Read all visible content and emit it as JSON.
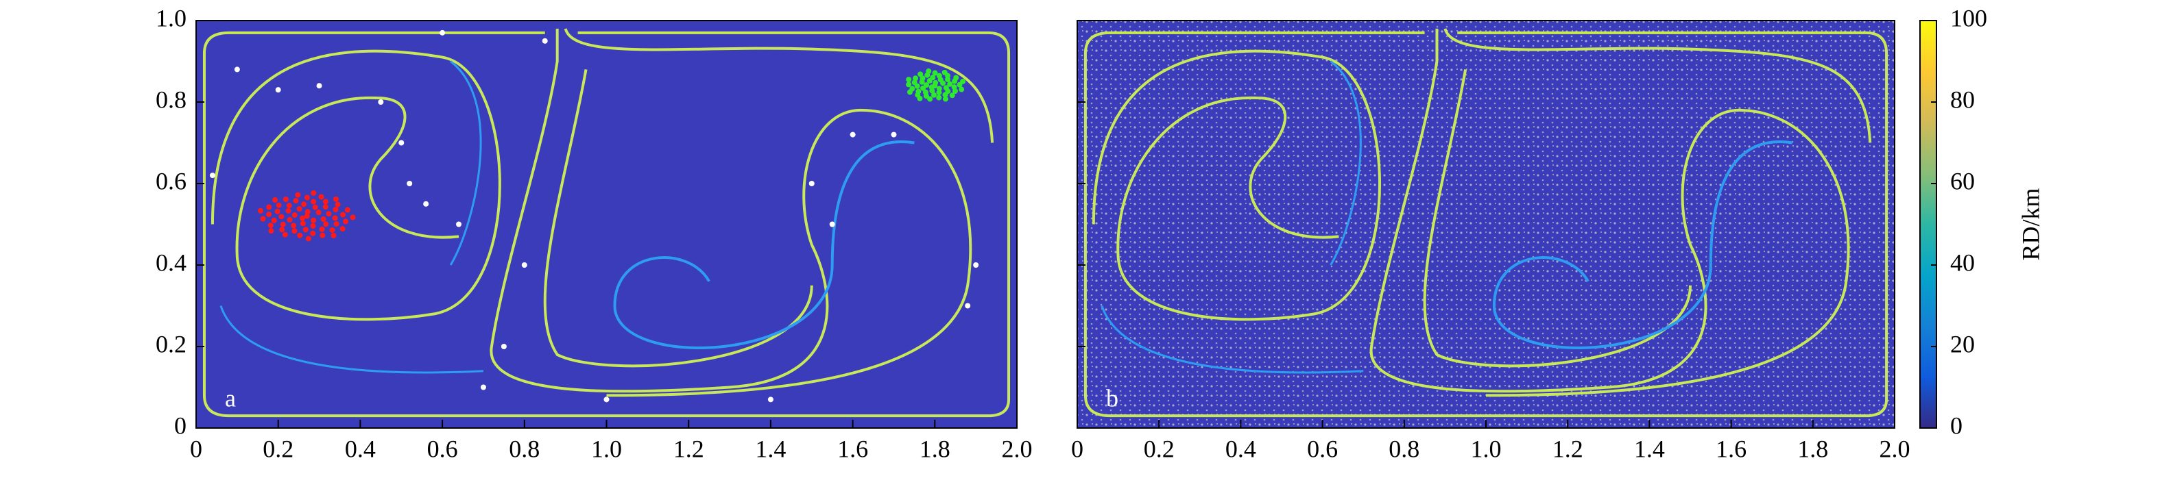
{
  "chart_data": [
    {
      "type": "heatmap",
      "panel_label": "a",
      "xlim": [
        0,
        2
      ],
      "xticks": [
        0,
        0.2,
        0.4,
        0.6,
        0.8,
        {
          "value": 1,
          "label": "1.0"
        },
        1.2,
        1.4,
        1.6,
        1.8,
        {
          "value": 2,
          "label": "2.0"
        }
      ],
      "ylim": [
        0,
        1
      ],
      "yticks": [
        0,
        0.2,
        0.4,
        0.6,
        0.8,
        {
          "value": 1,
          "label": "1.0"
        }
      ]
    },
    {
      "type": "heatmap",
      "panel_label": "b",
      "xlim": [
        0,
        2
      ],
      "xticks": [
        0,
        0.2,
        0.4,
        0.6,
        0.8,
        {
          "value": 1,
          "label": "1.0"
        },
        1.2,
        1.4,
        1.6,
        1.8,
        {
          "value": 2,
          "label": "2.0"
        }
      ],
      "colorbar": {
        "label": "RD/km",
        "lim": [
          0,
          100
        ],
        "ticks": [
          0,
          20,
          40,
          60,
          80,
          100
        ],
        "colors": [
          "#352a87",
          "#0f5cdd",
          "#1481d6",
          "#06a4ca",
          "#2eb7a4",
          "#87bf77",
          "#d1bb59",
          "#fec832",
          "#f9fb0e"
        ]
      }
    }
  ]
}
